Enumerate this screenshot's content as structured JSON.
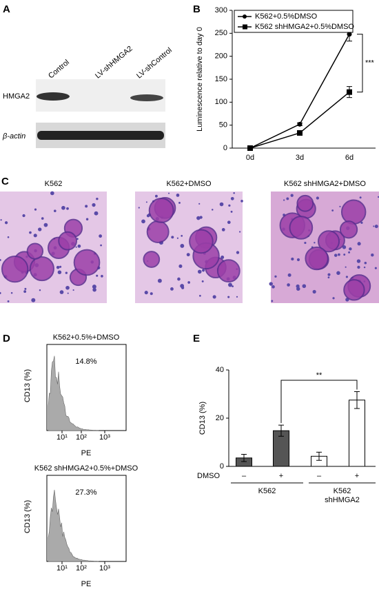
{
  "panel_labels": [
    "A",
    "B",
    "C",
    "D",
    "E"
  ],
  "blot": {
    "lanes": [
      "Control",
      "LV-shHMGA2",
      "LV-shControl"
    ],
    "rows": [
      "HMGA2",
      "β-actin"
    ]
  },
  "micrographs": {
    "titles": [
      "K562",
      "K562+DMSO",
      "K562 shHMGA2+DMSO"
    ]
  },
  "flow": [
    {
      "title": "K562+0.5%+DMSO",
      "percent": "14.8%",
      "ylabel": "CD13 (%)",
      "xlabel": "PE",
      "xtick_labels": [
        "10¹",
        "10²",
        "10³"
      ]
    },
    {
      "title": "K562 shHMGA2+0.5%+DMSO",
      "percent": "27.3%",
      "ylabel": "CD13 (%)",
      "xlabel": "PE",
      "xtick_labels": [
        "10¹",
        "10²",
        "10³"
      ]
    }
  ],
  "chart_data": [
    {
      "type": "line",
      "ylabel": "Luminescence relative to day 0",
      "categories": [
        "0d",
        "3d",
        "6d"
      ],
      "series": [
        {
          "name": "K562+0.5%DMSO",
          "color": "#000000",
          "marker": "circle",
          "values": [
            0,
            52,
            248
          ],
          "errors": [
            0,
            3,
            15
          ]
        },
        {
          "name": "K562 shHMGA2+0.5%DMSO",
          "color": "#000000",
          "marker": "square",
          "values": [
            0,
            33,
            122
          ],
          "errors": [
            0,
            3,
            12
          ]
        }
      ],
      "ylim": [
        0,
        300
      ],
      "yticks": [
        0,
        50,
        100,
        150,
        200,
        250,
        300
      ],
      "legend": "top",
      "annotation": "***"
    },
    {
      "type": "bar",
      "ylabel": "CD13 (%)",
      "row_label": "DMSO",
      "categories": [
        "–",
        "+",
        "–",
        "+"
      ],
      "values": [
        3.5,
        14.8,
        4.2,
        27.5
      ],
      "errors": [
        1.5,
        2.3,
        1.7,
        3.5
      ],
      "colors": [
        "#555555",
        "#555555",
        "#ffffff",
        "#ffffff"
      ],
      "groups": [
        [
          "K562"
        ],
        [
          "K562",
          "shHMGA2"
        ]
      ],
      "ylim": [
        0,
        40
      ],
      "yticks": [
        0,
        20,
        40
      ],
      "annotation": "**"
    }
  ]
}
